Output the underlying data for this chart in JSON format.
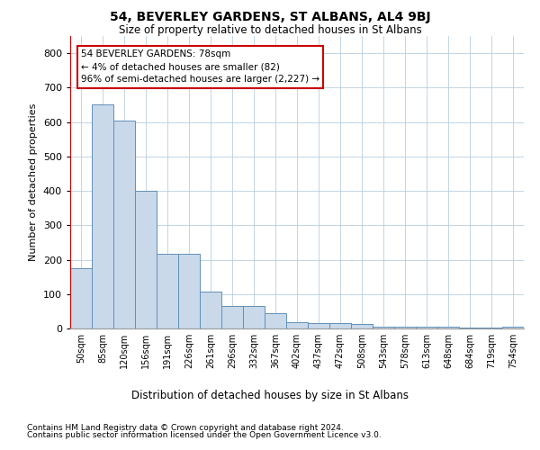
{
  "title": "54, BEVERLEY GARDENS, ST ALBANS, AL4 9BJ",
  "subtitle": "Size of property relative to detached houses in St Albans",
  "xlabel": "Distribution of detached houses by size in St Albans",
  "ylabel": "Number of detached properties",
  "footnote1": "Contains HM Land Registry data © Crown copyright and database right 2024.",
  "footnote2": "Contains public sector information licensed under the Open Government Licence v3.0.",
  "annotation_line1": "54 BEVERLEY GARDENS: 78sqm",
  "annotation_line2": "← 4% of detached houses are smaller (82)",
  "annotation_line3": "96% of semi-detached houses are larger (2,227) →",
  "bar_color": "#c9d9ea",
  "bar_edge_color": "#6090b8",
  "red_color": "#cc0000",
  "grid_color": "#b8cfe0",
  "categories": [
    "50sqm",
    "85sqm",
    "120sqm",
    "156sqm",
    "191sqm",
    "226sqm",
    "261sqm",
    "296sqm",
    "332sqm",
    "367sqm",
    "402sqm",
    "437sqm",
    "472sqm",
    "508sqm",
    "543sqm",
    "578sqm",
    "613sqm",
    "648sqm",
    "684sqm",
    "719sqm",
    "754sqm"
  ],
  "values": [
    175,
    650,
    605,
    400,
    218,
    218,
    108,
    65,
    65,
    45,
    18,
    15,
    15,
    12,
    5,
    5,
    5,
    5,
    2,
    2,
    5
  ],
  "ylim": [
    0,
    850
  ],
  "yticks": [
    0,
    100,
    200,
    300,
    400,
    500,
    600,
    700,
    800
  ],
  "figsize": [
    6.0,
    5.0
  ],
  "dpi": 100
}
